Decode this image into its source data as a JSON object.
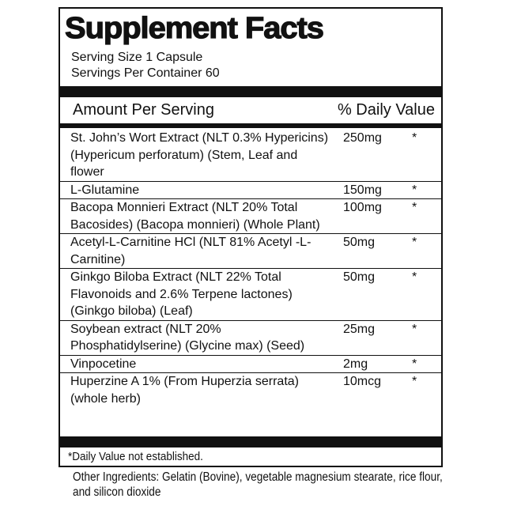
{
  "title": "Supplement Facts",
  "serving_size": "Serving Size 1 Capsule",
  "servings_per_container": "Servings Per Container 60",
  "header": {
    "amount": "Amount Per Serving",
    "dv": "% Daily Value"
  },
  "rows": [
    {
      "name": "St. John’s Wort Extract (NLT 0.3% Hypericins) (Hypericum perforatum) (Stem, Leaf and flower",
      "amount": "250mg",
      "dv": "*"
    },
    {
      "name": "L-Glutamine",
      "amount": "150mg",
      "dv": "*"
    },
    {
      "name": "Bacopa Monnieri Extract (NLT 20% Total Bacosides) (Bacopa monnieri) (Whole Plant)",
      "amount": "100mg",
      "dv": "*"
    },
    {
      "name": "Acetyl-L-Carnitine HCl (NLT 81% Acetyl -L-Carnitine)",
      "amount": "50mg",
      "dv": "*"
    },
    {
      "name": "Ginkgo Biloba Extract (NLT 22% Total Flavonoids and 2.6% Terpene lactones) (Ginkgo biloba) (Leaf)",
      "amount": "50mg",
      "dv": "*"
    },
    {
      "name": "Soybean extract (NLT 20% Phosphatidylserine) (Glycine max) (Seed)",
      "amount": "25mg",
      "dv": "*"
    },
    {
      "name": "Vinpocetine",
      "amount": "2mg",
      "dv": "*"
    },
    {
      "name": "Huperzine A 1% (From Huperzia serrata) (whole herb)",
      "amount": "10mcg",
      "dv": "*"
    }
  ],
  "footnote": "*Daily Value not established.",
  "other_ingredients": "Other Ingredients: Gelatin (Bovine), vegetable magnesium stearate, rice flour, and silicon dioxide"
}
